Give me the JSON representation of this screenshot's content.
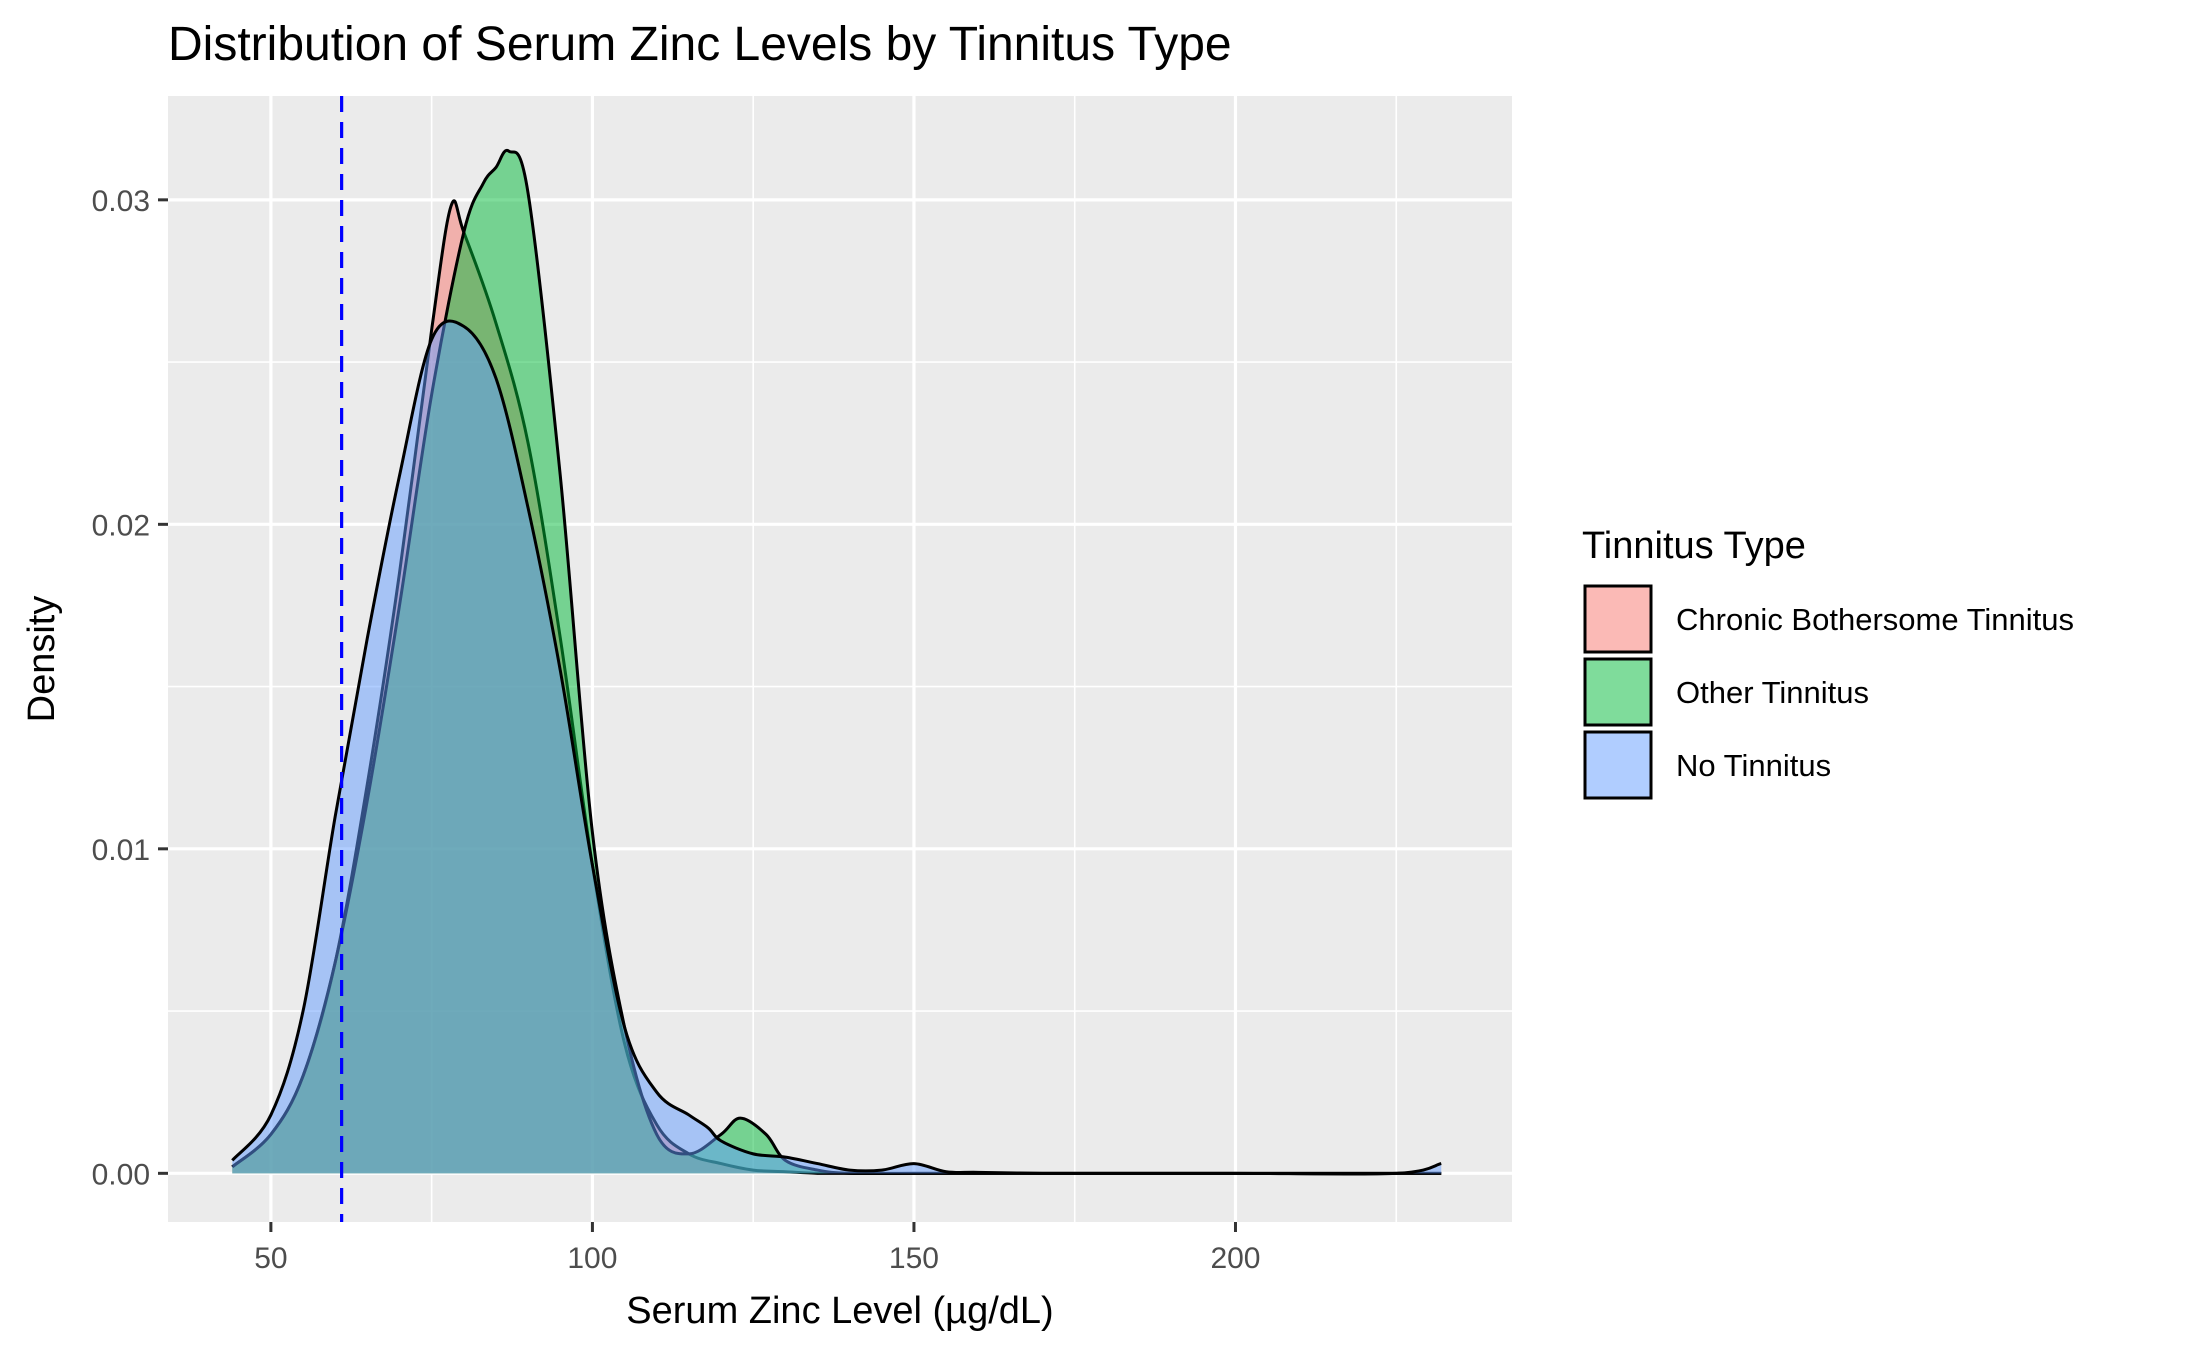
{
  "chart_data": {
    "type": "area",
    "title": "Distribution of Serum Zinc Levels by Tinnitus Type",
    "xlabel": "Serum Zinc Level (µg/dL)",
    "ylabel": "Density",
    "xlim": [
      34,
      243
    ],
    "ylim": [
      -0.0015,
      0.0332
    ],
    "x_ticks": [
      50,
      100,
      150,
      200
    ],
    "x_tick_labels": [
      "50",
      "100",
      "150",
      "200"
    ],
    "y_ticks": [
      0.0,
      0.01,
      0.02,
      0.03
    ],
    "y_tick_labels": [
      "0.00",
      "0.01",
      "0.02",
      "0.03"
    ],
    "grid": true,
    "reference_line": {
      "x": 61,
      "color": "#0000ff",
      "style": "dashed"
    },
    "legend": {
      "title": "Tinnitus Type",
      "position": "right",
      "entries": [
        "Chronic Bothersome Tinnitus",
        "Other Tinnitus",
        "No Tinnitus"
      ]
    },
    "series": [
      {
        "name": "Chronic Bothersome Tinnitus",
        "color": "#F8766D",
        "x": [
          44,
          50,
          55,
          60,
          65,
          70,
          75,
          78,
          80,
          85,
          90,
          95,
          100,
          105,
          110,
          115,
          120,
          125,
          130,
          135,
          140,
          150,
          160,
          180,
          200,
          232
        ],
        "y": [
          0.0002,
          0.0012,
          0.003,
          0.0065,
          0.012,
          0.0185,
          0.026,
          0.0298,
          0.029,
          0.0262,
          0.0225,
          0.0165,
          0.0095,
          0.004,
          0.0015,
          0.0006,
          0.0003,
          0.0001,
          5e-05,
          0.0,
          0.0,
          0.0,
          0.0,
          0.0,
          0.0,
          0.0
        ]
      },
      {
        "name": "Other Tinnitus",
        "color": "#00BA38",
        "x": [
          44,
          50,
          55,
          60,
          65,
          70,
          75,
          80,
          83,
          85,
          87,
          90,
          95,
          100,
          105,
          110,
          115,
          120,
          123,
          127,
          130,
          135,
          140,
          150,
          160,
          180,
          200,
          232
        ],
        "y": [
          0.0002,
          0.0012,
          0.003,
          0.0065,
          0.0115,
          0.0175,
          0.024,
          0.029,
          0.0305,
          0.031,
          0.0315,
          0.0302,
          0.0215,
          0.0105,
          0.0045,
          0.0012,
          0.0006,
          0.0012,
          0.0017,
          0.0012,
          0.0004,
          0.0001,
          0.0,
          0.0,
          0.0,
          0.0,
          0.0,
          0.0
        ]
      },
      {
        "name": "No Tinnitus",
        "color": "#619CFF",
        "x": [
          44,
          50,
          55,
          60,
          65,
          70,
          75,
          80,
          85,
          90,
          95,
          100,
          105,
          110,
          115,
          118,
          120,
          125,
          130,
          135,
          140,
          145,
          150,
          155,
          160,
          170,
          180,
          200,
          225,
          232
        ],
        "y": [
          0.0004,
          0.0018,
          0.005,
          0.011,
          0.0165,
          0.0215,
          0.0257,
          0.0261,
          0.0245,
          0.0205,
          0.0155,
          0.0095,
          0.0045,
          0.0025,
          0.0018,
          0.0014,
          0.001,
          0.0006,
          0.0005,
          0.0003,
          0.0001,
          0.0001,
          0.0003,
          5e-05,
          3e-05,
          0.0,
          0.0,
          0.0,
          0.0,
          0.0003
        ]
      }
    ]
  }
}
